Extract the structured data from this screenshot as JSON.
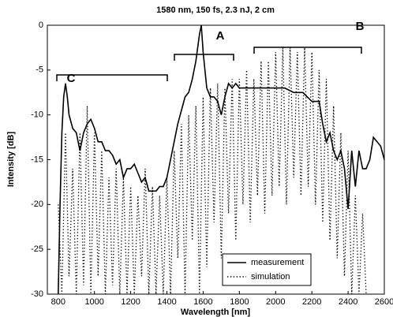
{
  "chart_data": {
    "type": "line",
    "title": "1580 nm, 150 fs, 2.3 nJ, 2 cm",
    "x_label": "Wavelength [nm]",
    "y_label": "Intensity [dB]",
    "xlim": [
      740,
      2600
    ],
    "ylim": [
      -30,
      0
    ],
    "xticks": [
      800,
      1000,
      1200,
      1400,
      1600,
      1800,
      2000,
      2200,
      2400,
      2600
    ],
    "yticks": [
      -30,
      -25,
      -20,
      -15,
      -10,
      -5,
      0
    ],
    "grid": false,
    "legend": "lower right",
    "annotations": [
      "C",
      "A",
      "B"
    ],
    "series": [
      {
        "name": "measurement",
        "color": "#000000",
        "style": "solid",
        "x": [
          800,
          810,
          820,
          830,
          840,
          850,
          860,
          880,
          900,
          920,
          940,
          960,
          980,
          1000,
          1020,
          1040,
          1060,
          1080,
          1100,
          1120,
          1140,
          1160,
          1180,
          1200,
          1220,
          1240,
          1260,
          1280,
          1300,
          1320,
          1340,
          1360,
          1380,
          1400,
          1420,
          1440,
          1460,
          1480,
          1500,
          1520,
          1540,
          1560,
          1580,
          1590,
          1600,
          1620,
          1640,
          1660,
          1680,
          1700,
          1720,
          1740,
          1760,
          1780,
          1800,
          1850,
          1900,
          1950,
          2000,
          2050,
          2100,
          2150,
          2200,
          2240,
          2260,
          2280,
          2300,
          2320,
          2340,
          2360,
          2380,
          2400,
          2420,
          2440,
          2460,
          2480,
          2500,
          2520,
          2540,
          2560,
          2580,
          2600
        ],
        "values": [
          -30,
          -20,
          -12,
          -8,
          -6.5,
          -8,
          -10,
          -11.5,
          -12,
          -14,
          -12,
          -11,
          -10.5,
          -11.5,
          -13,
          -13,
          -14,
          -14,
          -14.5,
          -15.5,
          -15,
          -17,
          -16,
          -16,
          -15.5,
          -16.5,
          -17.5,
          -17,
          -18.5,
          -18.5,
          -18.5,
          -18,
          -18,
          -17,
          -15,
          -13,
          -11,
          -9.5,
          -8,
          -7.5,
          -6,
          -4,
          -1,
          0,
          -3,
          -7,
          -8,
          -8,
          -8.5,
          -10,
          -8,
          -6.5,
          -7,
          -6.5,
          -7,
          -7,
          -7,
          -7,
          -7,
          -7,
          -7.5,
          -7.5,
          -8.5,
          -8.5,
          -11,
          -13,
          -12,
          -14,
          -15,
          -14,
          -16,
          -20.5,
          -14,
          -18,
          -14,
          -16,
          -16,
          -15,
          -12.5,
          -13,
          -13.5,
          -15
        ]
      },
      {
        "name": "simulation",
        "color": "#000000",
        "style": "dotted",
        "x": [
          800,
          820,
          840,
          860,
          880,
          900,
          920,
          940,
          960,
          980,
          1000,
          1020,
          1040,
          1060,
          1080,
          1100,
          1120,
          1140,
          1160,
          1180,
          1200,
          1220,
          1240,
          1260,
          1280,
          1300,
          1320,
          1340,
          1360,
          1380,
          1400,
          1420,
          1440,
          1460,
          1480,
          1500,
          1520,
          1540,
          1560,
          1580,
          1600,
          1620,
          1640,
          1660,
          1680,
          1700,
          1720,
          1740,
          1760,
          1780,
          1800,
          1820,
          1840,
          1860,
          1880,
          1900,
          1920,
          1940,
          1960,
          1980,
          2000,
          2020,
          2040,
          2060,
          2080,
          2100,
          2120,
          2140,
          2160,
          2180,
          2200,
          2220,
          2240,
          2260,
          2280,
          2300,
          2320,
          2340,
          2360,
          2380,
          2400,
          2420,
          2440,
          2460,
          2480,
          2500
        ],
        "values": [
          -20,
          -30,
          -12,
          -28,
          -16,
          -30,
          -12,
          -29,
          -9,
          -30,
          -12,
          -28,
          -14,
          -30,
          -17,
          -29,
          -16,
          -30,
          -17,
          -30,
          -18,
          -30,
          -19,
          -28,
          -16,
          -30,
          -18,
          -30,
          -19,
          -30,
          -17,
          -30,
          -14,
          -26,
          -11,
          -30,
          -10,
          -24,
          -9,
          -30,
          -8,
          -27,
          -7,
          -22,
          -6.5,
          -26,
          -7,
          -21,
          -6,
          -24,
          -6,
          -20,
          -5,
          -22,
          -6,
          -19,
          -4,
          -21,
          -4,
          -19,
          -3,
          -18,
          -2.5,
          -20,
          -2.5,
          -17,
          -3,
          -19,
          -2.5,
          -18,
          -3,
          -20,
          -5,
          -22,
          -6,
          -24,
          -9,
          -26,
          -12,
          -28,
          -14,
          -30,
          -19,
          -30,
          -21,
          -30
        ]
      }
    ]
  }
}
